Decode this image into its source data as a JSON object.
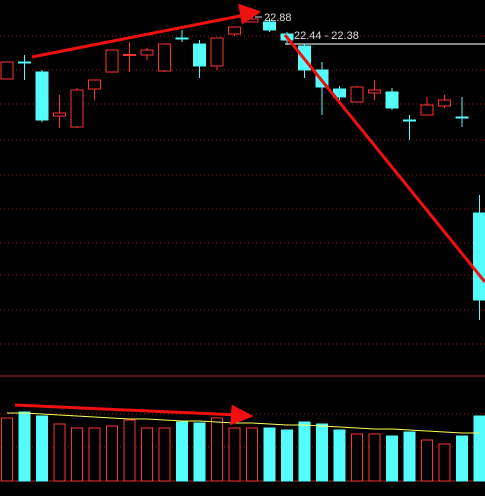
{
  "chart_data": {
    "type": "candlestick",
    "annotations": [
      "22.88",
      "22.44 - 22.38"
    ],
    "open": [
      21.64,
      21.98,
      21.78,
      20.9,
      20.68,
      21.44,
      21.78,
      22.12,
      22.12,
      21.8,
      22.46,
      22.34,
      21.9,
      22.54,
      22.78,
      22.78,
      22.54,
      22.3,
      21.82,
      21.44,
      21.18,
      21.36,
      21.38,
      20.82,
      20.92,
      21.1,
      20.88,
      18.96
    ],
    "high": [
      21.98,
      22.12,
      21.82,
      21.32,
      21.46,
      21.62,
      22.22,
      22.38,
      22.26,
      22.34,
      22.62,
      22.42,
      22.46,
      22.68,
      22.88,
      22.86,
      22.58,
      22.34,
      21.98,
      21.5,
      21.5,
      21.62,
      21.46,
      20.92,
      21.28,
      21.32,
      21.28,
      19.32
    ],
    "low": [
      21.64,
      21.62,
      20.78,
      20.66,
      20.66,
      21.22,
      21.78,
      21.78,
      22.02,
      21.78,
      22.38,
      21.66,
      21.82,
      22.5,
      22.78,
      22.58,
      22.32,
      21.66,
      20.92,
      21.22,
      21.18,
      21.22,
      21.02,
      20.42,
      20.92,
      21.06,
      20.68,
      16.82
    ],
    "close": [
      21.98,
      21.97,
      20.82,
      20.96,
      21.42,
      21.62,
      22.22,
      22.13,
      22.22,
      22.34,
      22.45,
      21.9,
      22.46,
      22.68,
      22.84,
      22.62,
      22.42,
      21.82,
      21.48,
      21.28,
      21.48,
      21.42,
      21.06,
      20.81,
      21.12,
      21.22,
      20.87,
      17.22
    ],
    "volume": [
      63,
      69,
      65,
      57,
      53,
      53,
      55,
      61,
      53,
      53,
      59,
      58,
      63,
      53,
      53,
      53,
      51,
      59,
      57,
      51,
      47,
      47,
      45,
      49,
      41,
      37,
      45,
      65
    ],
    "volume_ma": [
      68,
      68,
      67,
      66,
      65,
      64,
      63,
      62,
      62,
      61,
      60,
      60,
      59,
      58,
      58,
      57,
      56,
      56,
      55,
      54,
      53,
      52,
      52,
      51,
      50,
      49,
      48,
      48
    ],
    "up_color": "#ff3232",
    "down_color": "#54fcfc",
    "ma_color": "#ffff54",
    "ylim": [
      15.82,
      23.22
    ],
    "volume_ylim": [
      0,
      101
    ]
  }
}
